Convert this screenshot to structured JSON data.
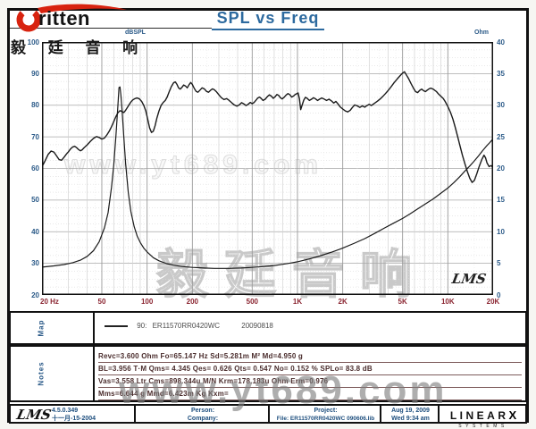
{
  "header": {
    "title": "SPL vs Freq",
    "brand": "ritten",
    "brand_cn": "毅 廷 音 响"
  },
  "axes": {
    "left_unit": "dBSPL",
    "right_unit": "Ohm",
    "left_ticks": [
      100,
      90,
      80,
      70,
      60,
      50,
      40,
      30,
      20
    ],
    "right_ticks": [
      40,
      35,
      30,
      25,
      20,
      15,
      10,
      5,
      0
    ],
    "bottom_ticks": [
      {
        "label": "20 Hz",
        "f": 20
      },
      {
        "label": "50",
        "f": 50
      },
      {
        "label": "100",
        "f": 100
      },
      {
        "label": "200",
        "f": 200
      },
      {
        "label": "500",
        "f": 500
      },
      {
        "label": "1K",
        "f": 1000
      },
      {
        "label": "2K",
        "f": 2000
      },
      {
        "label": "5K",
        "f": 5000
      },
      {
        "label": "10K",
        "f": 10000
      },
      {
        "label": "20K",
        "f": 20000
      }
    ]
  },
  "chart_data": {
    "type": "line",
    "title": "SPL vs Freq",
    "x_axis": {
      "label": "Frequency (Hz)",
      "scale": "log",
      "range": [
        20,
        20000
      ]
    },
    "y_left": {
      "label": "dBSPL",
      "range": [
        20,
        100
      ],
      "major_step": 10
    },
    "y_right": {
      "label": "Ohm",
      "range": [
        0,
        40
      ],
      "major_step": 5
    },
    "legend": "90: ER11570RR0420WC 20090818",
    "grid": "log minor verticals per decade, 10 dB major / 2.5 dB dotted minor horizontals",
    "series": [
      {
        "name": "SPL",
        "axis": "left",
        "unit": "dBSPL",
        "points": [
          [
            20,
            60.5
          ],
          [
            21,
            62.5
          ],
          [
            22,
            64.5
          ],
          [
            23,
            65.5
          ],
          [
            24,
            65.2
          ],
          [
            25,
            64.0
          ],
          [
            26,
            62.8
          ],
          [
            27,
            62.6
          ],
          [
            28,
            63.5
          ],
          [
            29,
            64.5
          ],
          [
            30,
            65.3
          ],
          [
            31,
            66.2
          ],
          [
            32,
            66.8
          ],
          [
            33,
            67.0
          ],
          [
            34,
            66.6
          ],
          [
            35,
            66.0
          ],
          [
            36,
            65.6
          ],
          [
            37,
            65.9
          ],
          [
            38,
            66.5
          ],
          [
            40,
            67.5
          ],
          [
            42,
            68.6
          ],
          [
            44,
            69.5
          ],
          [
            46,
            70.1
          ],
          [
            48,
            69.8
          ],
          [
            50,
            69.3
          ],
          [
            52,
            69.6
          ],
          [
            54,
            70.6
          ],
          [
            56,
            71.8
          ],
          [
            58,
            73.2
          ],
          [
            60,
            74.8
          ],
          [
            62,
            76.4
          ],
          [
            64,
            77.6
          ],
          [
            66,
            78.3
          ],
          [
            68,
            78.0
          ],
          [
            70,
            77.7
          ],
          [
            72,
            78.4
          ],
          [
            74,
            79.3
          ],
          [
            76,
            80.2
          ],
          [
            78,
            81.0
          ],
          [
            80,
            81.6
          ],
          [
            83,
            82.1
          ],
          [
            86,
            82.3
          ],
          [
            89,
            82.0
          ],
          [
            92,
            81.2
          ],
          [
            95,
            80.0
          ],
          [
            98,
            78.2
          ],
          [
            101,
            75.5
          ],
          [
            104,
            72.8
          ],
          [
            107,
            71.4
          ],
          [
            110,
            71.8
          ],
          [
            113,
            73.5
          ],
          [
            116,
            75.8
          ],
          [
            120,
            78.2
          ],
          [
            124,
            80.0
          ],
          [
            128,
            80.9
          ],
          [
            132,
            81.5
          ],
          [
            136,
            82.6
          ],
          [
            140,
            84.2
          ],
          [
            145,
            85.9
          ],
          [
            150,
            87.1
          ],
          [
            154,
            87.4
          ],
          [
            158,
            86.6
          ],
          [
            162,
            85.5
          ],
          [
            166,
            85.1
          ],
          [
            170,
            85.6
          ],
          [
            175,
            86.4
          ],
          [
            180,
            86.1
          ],
          [
            185,
            85.5
          ],
          [
            190,
            86.5
          ],
          [
            195,
            87.2
          ],
          [
            200,
            86.6
          ],
          [
            206,
            85.3
          ],
          [
            212,
            84.4
          ],
          [
            218,
            84.1
          ],
          [
            225,
            84.8
          ],
          [
            232,
            85.5
          ],
          [
            240,
            85.2
          ],
          [
            248,
            84.4
          ],
          [
            256,
            84.1
          ],
          [
            264,
            84.7
          ],
          [
            272,
            85.2
          ],
          [
            280,
            84.9
          ],
          [
            290,
            84.2
          ],
          [
            300,
            83.3
          ],
          [
            312,
            82.4
          ],
          [
            325,
            81.8
          ],
          [
            338,
            82.1
          ],
          [
            350,
            81.6
          ],
          [
            365,
            80.8
          ],
          [
            380,
            80.1
          ],
          [
            395,
            79.7
          ],
          [
            410,
            80.1
          ],
          [
            425,
            80.8
          ],
          [
            440,
            80.4
          ],
          [
            455,
            79.9
          ],
          [
            470,
            80.3
          ],
          [
            485,
            80.9
          ],
          [
            500,
            80.5
          ],
          [
            515,
            80.9
          ],
          [
            530,
            81.6
          ],
          [
            545,
            82.3
          ],
          [
            560,
            82.6
          ],
          [
            575,
            82.1
          ],
          [
            590,
            81.5
          ],
          [
            610,
            81.9
          ],
          [
            630,
            82.7
          ],
          [
            650,
            83.3
          ],
          [
            670,
            82.9
          ],
          [
            690,
            82.2
          ],
          [
            710,
            82.7
          ],
          [
            730,
            83.4
          ],
          [
            750,
            83.1
          ],
          [
            770,
            82.4
          ],
          [
            790,
            82.0
          ],
          [
            815,
            82.5
          ],
          [
            840,
            83.2
          ],
          [
            865,
            83.7
          ],
          [
            890,
            83.3
          ],
          [
            915,
            82.6
          ],
          [
            940,
            82.9
          ],
          [
            965,
            83.4
          ],
          [
            990,
            83.7
          ],
          [
            1010,
            83.9
          ],
          [
            1030,
            82.0
          ],
          [
            1050,
            78.6
          ],
          [
            1070,
            79.8
          ],
          [
            1100,
            81.6
          ],
          [
            1130,
            82.5
          ],
          [
            1160,
            82.2
          ],
          [
            1200,
            81.5
          ],
          [
            1240,
            81.9
          ],
          [
            1280,
            82.4
          ],
          [
            1320,
            82.0
          ],
          [
            1360,
            81.5
          ],
          [
            1400,
            81.9
          ],
          [
            1450,
            82.3
          ],
          [
            1500,
            82.0
          ],
          [
            1560,
            81.5
          ],
          [
            1620,
            81.9
          ],
          [
            1680,
            81.4
          ],
          [
            1740,
            80.7
          ],
          [
            1800,
            81.2
          ],
          [
            1860,
            80.4
          ],
          [
            1920,
            79.5
          ],
          [
            2000,
            78.8
          ],
          [
            2080,
            78.2
          ],
          [
            2160,
            77.9
          ],
          [
            2240,
            78.4
          ],
          [
            2320,
            79.3
          ],
          [
            2400,
            80.1
          ],
          [
            2500,
            79.8
          ],
          [
            2600,
            79.3
          ],
          [
            2700,
            79.8
          ],
          [
            2800,
            79.4
          ],
          [
            2900,
            79.9
          ],
          [
            3000,
            80.3
          ],
          [
            3100,
            79.9
          ],
          [
            3250,
            80.6
          ],
          [
            3400,
            81.3
          ],
          [
            3550,
            82.0
          ],
          [
            3700,
            82.8
          ],
          [
            3850,
            83.7
          ],
          [
            4000,
            84.6
          ],
          [
            4200,
            85.9
          ],
          [
            4400,
            87.2
          ],
          [
            4600,
            88.3
          ],
          [
            4800,
            89.3
          ],
          [
            5000,
            90.2
          ],
          [
            5150,
            90.6
          ],
          [
            5300,
            89.6
          ],
          [
            5500,
            88.3
          ],
          [
            5700,
            86.8
          ],
          [
            5900,
            85.4
          ],
          [
            6100,
            84.3
          ],
          [
            6300,
            84.0
          ],
          [
            6500,
            84.7
          ],
          [
            6700,
            85.1
          ],
          [
            6900,
            84.6
          ],
          [
            7100,
            84.3
          ],
          [
            7300,
            84.8
          ],
          [
            7500,
            85.2
          ],
          [
            7700,
            85.4
          ],
          [
            7900,
            85.2
          ],
          [
            8100,
            84.9
          ],
          [
            8400,
            84.3
          ],
          [
            8700,
            83.5
          ],
          [
            9000,
            82.8
          ],
          [
            9300,
            82.2
          ],
          [
            9600,
            81.2
          ],
          [
            10000,
            79.6
          ],
          [
            10400,
            77.8
          ],
          [
            10800,
            75.6
          ],
          [
            11200,
            73.0
          ],
          [
            11600,
            70.2
          ],
          [
            12000,
            67.4
          ],
          [
            12500,
            64.2
          ],
          [
            13000,
            61.4
          ],
          [
            13500,
            58.9
          ],
          [
            14000,
            56.9
          ],
          [
            14500,
            55.6
          ],
          [
            15000,
            56.2
          ],
          [
            15600,
            58.4
          ],
          [
            16200,
            60.8
          ],
          [
            16800,
            62.8
          ],
          [
            17400,
            64.2
          ],
          [
            17800,
            63.4
          ],
          [
            18200,
            61.8
          ],
          [
            18800,
            60.6
          ],
          [
            19400,
            60.9
          ],
          [
            20000,
            60.2
          ]
        ]
      },
      {
        "name": "Impedance",
        "axis": "right",
        "unit": "Ohm",
        "points": [
          [
            20,
            4.4
          ],
          [
            24,
            4.6
          ],
          [
            28,
            4.8
          ],
          [
            32,
            5.1
          ],
          [
            36,
            5.5
          ],
          [
            40,
            6.1
          ],
          [
            44,
            7.0
          ],
          [
            48,
            8.4
          ],
          [
            52,
            10.6
          ],
          [
            55,
            13.0
          ],
          [
            58,
            17.0
          ],
          [
            60,
            20.5
          ],
          [
            62,
            25.0
          ],
          [
            64,
            30.0
          ],
          [
            65,
            32.8
          ],
          [
            66,
            32.9
          ],
          [
            67,
            31.5
          ],
          [
            68,
            29.5
          ],
          [
            70,
            25.0
          ],
          [
            72,
            20.8
          ],
          [
            75,
            16.2
          ],
          [
            78,
            13.2
          ],
          [
            82,
            10.8
          ],
          [
            86,
            9.3
          ],
          [
            90,
            8.3
          ],
          [
            95,
            7.4
          ],
          [
            100,
            6.8
          ],
          [
            110,
            5.9
          ],
          [
            120,
            5.4
          ],
          [
            135,
            4.95
          ],
          [
            150,
            4.7
          ],
          [
            170,
            4.5
          ],
          [
            200,
            4.35
          ],
          [
            240,
            4.25
          ],
          [
            280,
            4.2
          ],
          [
            350,
            4.2
          ],
          [
            420,
            4.25
          ],
          [
            500,
            4.35
          ],
          [
            600,
            4.5
          ],
          [
            700,
            4.65
          ],
          [
            800,
            4.85
          ],
          [
            900,
            5.05
          ],
          [
            1000,
            5.25
          ],
          [
            1200,
            5.7
          ],
          [
            1400,
            6.15
          ],
          [
            1700,
            6.8
          ],
          [
            2000,
            7.4
          ],
          [
            2400,
            8.2
          ],
          [
            2800,
            8.9
          ],
          [
            3300,
            9.8
          ],
          [
            3800,
            10.6
          ],
          [
            4400,
            11.4
          ],
          [
            5000,
            12.1
          ],
          [
            5600,
            12.8
          ],
          [
            6300,
            13.6
          ],
          [
            7000,
            14.3
          ],
          [
            8000,
            15.2
          ],
          [
            9000,
            16.1
          ],
          [
            10000,
            16.9
          ],
          [
            11000,
            17.8
          ],
          [
            12000,
            18.7
          ],
          [
            13000,
            19.6
          ],
          [
            14000,
            20.4
          ],
          [
            15000,
            21.2
          ],
          [
            16000,
            22.0
          ],
          [
            17000,
            22.8
          ],
          [
            18000,
            23.5
          ],
          [
            19000,
            24.1
          ],
          [
            20000,
            24.7
          ]
        ]
      }
    ]
  },
  "plot": {
    "lms_mark": "LMS"
  },
  "watermarks": {
    "mid": "www.yt689.com",
    "chinese": "毅廷音响",
    "bottom": "www.yt689.com"
  },
  "map_panel": {
    "label": "Map",
    "entry_id": "90:",
    "entry_name": "ER11570RR0420WC",
    "entry_date": "20090818"
  },
  "notes_panel": {
    "label": "Notes",
    "lines": [
      "Revc=3.600 Ohm  Fo=65.147 Hz  Sd=5.281m M²  Md=4.950 g",
      "BL=3.956 T·M  Qms= 4.345  Qes= 0.626  Qts= 0.547  No= 0.152 %  SPLo= 83.8 dB",
      "Vas=3.558 Ltr  Cms=898.344u M/N  Krm=178.183u Ohm  Erm=0.976",
      "Mms=6.644 g  Mmd=6.423m Kg  Kxm="
    ]
  },
  "footer": {
    "lms_logo": "LMS",
    "version": "4.5.0.349",
    "build_date": "十一月-15-2004",
    "person_label": "Person:",
    "company_label": "Company:",
    "project_label": "Project:",
    "file_label": "File: ER11570RR0420WC  090606.lib",
    "date": "Aug 19, 2009",
    "time": "Wed 9:34 am",
    "linearx": "LINEAR",
    "linearx_x": "X",
    "systems": "SYSTEMS"
  }
}
